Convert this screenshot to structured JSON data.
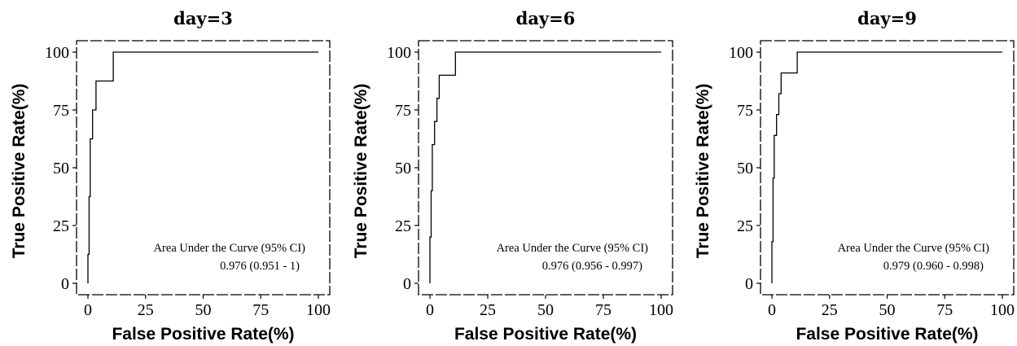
{
  "chart_data": [
    {
      "type": "line",
      "title": "day=3",
      "xlabel": "False Positive Rate(%)",
      "ylabel": "True Positive Rate(%)",
      "xlim": [
        0,
        100
      ],
      "ylim": [
        0,
        100
      ],
      "xticks": [
        "0",
        "25",
        "50",
        "75",
        "100"
      ],
      "yticks": [
        "0",
        "25",
        "50",
        "75",
        "100"
      ],
      "grid": false,
      "annotation": {
        "label": "Area Under the Curve (95% CI)",
        "value": "0.976 (0.951 - 1)"
      },
      "series": [
        {
          "x": [
            0,
            0,
            0.5,
            0.5,
            1.0,
            1.0,
            2.0,
            2.0,
            3.5,
            3.5,
            11,
            11,
            100
          ],
          "y": [
            0,
            12.5,
            12.5,
            37.5,
            37.5,
            62.5,
            62.5,
            75,
            75,
            87.5,
            87.5,
            100,
            100
          ]
        }
      ]
    },
    {
      "type": "line",
      "title": "day=6",
      "xlabel": "False Positive Rate(%)",
      "ylabel": "True Positive Rate(%)",
      "xlim": [
        0,
        100
      ],
      "ylim": [
        0,
        100
      ],
      "xticks": [
        "0",
        "25",
        "50",
        "75",
        "100"
      ],
      "yticks": [
        "0",
        "25",
        "50",
        "75",
        "100"
      ],
      "grid": false,
      "annotation": {
        "label": "Area Under the Curve (95% CI)",
        "value": "0.976 (0.956 - 0.997)"
      },
      "series": [
        {
          "x": [
            0,
            0,
            0.5,
            0.5,
            1.0,
            1.0,
            2.0,
            2.0,
            3.0,
            3.0,
            4.0,
            4.0,
            11,
            11,
            100
          ],
          "y": [
            0,
            20,
            20,
            40,
            40,
            60,
            60,
            70,
            70,
            80,
            80,
            90,
            90,
            100,
            100
          ]
        }
      ]
    },
    {
      "type": "line",
      "title": "day=9",
      "xlabel": "False Positive Rate(%)",
      "ylabel": "True Positive Rate(%)",
      "xlim": [
        0,
        100
      ],
      "ylim": [
        0,
        100
      ],
      "xticks": [
        "0",
        "25",
        "50",
        "75",
        "100"
      ],
      "yticks": [
        "0",
        "25",
        "50",
        "75",
        "100"
      ],
      "grid": false,
      "annotation": {
        "label": "Area Under the Curve (95% CI)",
        "value": "0.979 (0.960 - 0.998)"
      },
      "series": [
        {
          "x": [
            0,
            0,
            0.5,
            0.5,
            1.0,
            1.0,
            2.0,
            2.0,
            3.0,
            3.0,
            4.0,
            4.0,
            11,
            11,
            100
          ],
          "y": [
            0,
            18,
            18,
            45.5,
            45.5,
            64,
            64,
            73,
            73,
            82,
            82,
            91,
            91,
            100,
            100
          ]
        }
      ]
    }
  ]
}
